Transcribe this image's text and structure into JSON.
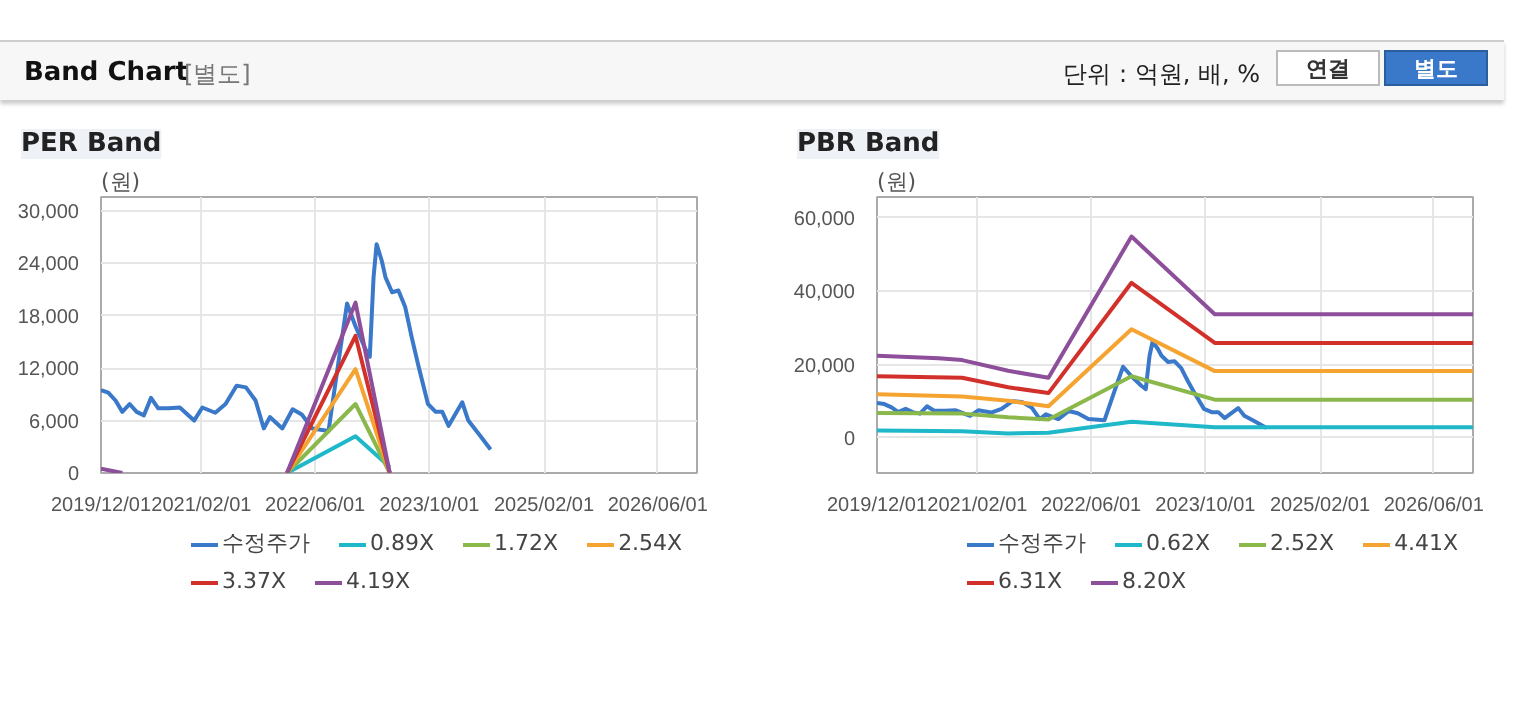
{
  "chart_data": [
    {
      "type": "line",
      "title": "PER Band",
      "ylabel": "(원)",
      "annotations": [
        "Band Chart",
        "[별도]",
        "단위 : 억원, 배, %",
        "연결",
        "별도"
      ],
      "xlim": [
        "2019-12-01",
        "2026-11-15"
      ],
      "ylim": [
        0,
        31600
      ],
      "xticks": [
        {
          "value": "2019-12-01",
          "label": "2019/12/01"
        },
        {
          "value": "2021-02-01",
          "label": "2021/02/01"
        },
        {
          "value": "2022-06-01",
          "label": "2022/06/01"
        },
        {
          "value": "2023-10-01",
          "label": "2023/10/01"
        },
        {
          "value": "2025-02-01",
          "label": "2025/02/01"
        },
        {
          "value": "2026-06-01",
          "label": "2026/06/01"
        }
      ],
      "yticks": [
        0,
        {
          "value": 6000,
          "label": "6,000"
        },
        {
          "value": 12000,
          "label": "12,000"
        },
        {
          "value": 18000,
          "label": "18,000"
        },
        {
          "value": 24000,
          "label": "24,000"
        },
        {
          "value": 30000,
          "label": "30,000"
        }
      ],
      "grid": true,
      "legend": "bottom",
      "marker": "none",
      "line_style": "solid",
      "series": [
        {
          "name": "수정주가",
          "color": "#3a78c9",
          "x": [
            "2019-12-01",
            "2020-01-01",
            "2020-02-01",
            "2020-03-01",
            "2020-04-01",
            "2020-05-01",
            "2020-06-01",
            "2020-07-01",
            "2020-08-01",
            "2020-09-15",
            "2020-11-01",
            "2021-01-01",
            "2021-02-05",
            "2021-04-01",
            "2021-05-15",
            "2021-07-01",
            "2021-08-10",
            "2021-09-20",
            "2021-10-25",
            "2021-11-20",
            "2022-01-12",
            "2022-02-25",
            "2022-04-05",
            "2022-05-20",
            "2022-07-28",
            "2022-09-10",
            "2022-10-15",
            "2022-11-20",
            "2023-01-01",
            "2023-01-20",
            "2023-02-05",
            "2023-02-18",
            "2023-03-12",
            "2023-03-28",
            "2023-04-25",
            "2023-05-22",
            "2023-06-20",
            "2023-07-18",
            "2023-08-15",
            "2023-09-25",
            "2023-10-28",
            "2023-11-25",
            "2023-12-22",
            "2024-02-18",
            "2024-03-15",
            "2024-04-28",
            "2024-06-18"
          ],
          "values": [
            9500,
            9200,
            8300,
            7000,
            7900,
            7000,
            6600,
            8600,
            7400,
            7400,
            7500,
            6000,
            7500,
            6900,
            7900,
            10000,
            9800,
            8300,
            5100,
            6400,
            5100,
            7300,
            6700,
            5100,
            4800,
            13000,
            19400,
            16800,
            14200,
            13300,
            22400,
            26200,
            24300,
            22400,
            20700,
            20900,
            19000,
            15500,
            12300,
            7900,
            7000,
            7000,
            5400,
            8100,
            6000,
            4500,
            2700
          ]
        },
        {
          "name": "0.89X",
          "color": "#1fb8c9",
          "x": [
            "2022-02-01",
            "2022-11-20",
            "2023-04-15"
          ],
          "values": [
            0,
            4200,
            700
          ]
        },
        {
          "name": "1.72X",
          "color": "#8ab84a",
          "x": [
            "2022-02-01",
            "2022-11-20",
            "2023-04-15"
          ],
          "values": [
            0,
            7900,
            0
          ]
        },
        {
          "name": "2.54X",
          "color": "#f5a431",
          "x": [
            "2022-02-01",
            "2022-11-20",
            "2023-04-15"
          ],
          "values": [
            0,
            11900,
            0
          ]
        },
        {
          "name": "3.37X",
          "color": "#d2302a",
          "x": [
            "2022-02-01",
            "2022-11-20",
            "2023-04-15"
          ],
          "values": [
            0,
            15700,
            0
          ]
        },
        {
          "name": "4.19X",
          "color": "#8e4f9a",
          "x": [
            "2019-12-01",
            "2020-03-01",
            "2021-01-01",
            "2022-02-01",
            "2022-11-20",
            "2023-04-15"
          ],
          "values": [
            500,
            0,
            null,
            0,
            19500,
            0
          ]
        }
      ]
    },
    {
      "type": "line",
      "title": "PBR Band",
      "ylabel": "(원)",
      "xlim": [
        "2019-12-01",
        "2026-11-15"
      ],
      "ylim": [
        -9600,
        65700
      ],
      "xticks": [
        {
          "value": "2019-12-01",
          "label": "2019/12/01"
        },
        {
          "value": "2021-02-01",
          "label": "2021/02/01"
        },
        {
          "value": "2022-06-01",
          "label": "2022/06/01"
        },
        {
          "value": "2023-10-01",
          "label": "2023/10/01"
        },
        {
          "value": "2025-02-01",
          "label": "2025/02/01"
        },
        {
          "value": "2026-06-01",
          "label": "2026/06/01"
        }
      ],
      "yticks": [
        0,
        {
          "value": 20000,
          "label": "20,000"
        },
        {
          "value": 40000,
          "label": "40,000"
        },
        {
          "value": 60000,
          "label": "60,000"
        }
      ],
      "grid": true,
      "legend": "bottom",
      "marker": "none",
      "line_style": "solid",
      "series": [
        {
          "name": "수정주가",
          "color": "#3a78c9",
          "x": [
            "2019-12-01",
            "2020-01-01",
            "2020-02-01",
            "2020-03-01",
            "2020-04-01",
            "2020-05-01",
            "2020-06-01",
            "2020-07-01",
            "2020-08-01",
            "2020-09-15",
            "2020-11-01",
            "2021-01-01",
            "2021-02-05",
            "2021-04-01",
            "2021-05-15",
            "2021-07-01",
            "2021-08-10",
            "2021-09-20",
            "2021-10-25",
            "2021-11-20",
            "2022-01-12",
            "2022-02-25",
            "2022-04-05",
            "2022-05-20",
            "2022-07-28",
            "2022-09-10",
            "2022-10-15",
            "2022-11-20",
            "2023-01-01",
            "2023-01-20",
            "2023-02-05",
            "2023-02-18",
            "2023-03-12",
            "2023-03-28",
            "2023-04-25",
            "2023-05-22",
            "2023-06-20",
            "2023-07-18",
            "2023-08-15",
            "2023-09-25",
            "2023-10-28",
            "2023-11-25",
            "2023-12-22",
            "2024-02-18",
            "2024-03-15",
            "2024-04-28",
            "2024-06-18"
          ],
          "values": [
            9500,
            9200,
            8300,
            7000,
            7900,
            7000,
            6600,
            8600,
            7400,
            7400,
            7500,
            6000,
            7500,
            6900,
            7900,
            10000,
            9800,
            8300,
            5100,
            6400,
            5100,
            7300,
            6700,
            5100,
            4800,
            13000,
            19400,
            16800,
            14200,
            13300,
            22400,
            26200,
            24300,
            22400,
            20700,
            20900,
            19000,
            15500,
            12300,
            7900,
            7000,
            7000,
            5400,
            8100,
            6000,
            4500,
            2700
          ]
        },
        {
          "name": "0.62X",
          "color": "#1fb8c9",
          "x": [
            "2019-12-01",
            "2020-11-28",
            "2021-06-12",
            "2021-12-01",
            "2022-11-20",
            "2023-11-10",
            "2026-11-15"
          ],
          "values": [
            2000,
            1800,
            1200,
            1400,
            4400,
            2900,
            2900
          ]
        },
        {
          "name": "2.52X",
          "color": "#8ab84a",
          "x": [
            "2019-12-01",
            "2020-11-28",
            "2021-06-12",
            "2021-12-01",
            "2022-11-20",
            "2023-11-10",
            "2026-11-15"
          ],
          "values": [
            6800,
            6600,
            5600,
            5000,
            16800,
            10400,
            10400
          ]
        },
        {
          "name": "4.41X",
          "color": "#f5a431",
          "x": [
            "2019-12-01",
            "2020-11-28",
            "2021-06-12",
            "2021-12-01",
            "2022-11-20",
            "2023-11-10",
            "2026-11-15"
          ],
          "values": [
            11900,
            11300,
            10100,
            8600,
            29600,
            18200,
            18200
          ]
        },
        {
          "name": "6.31X",
          "color": "#d2302a",
          "x": [
            "2019-12-01",
            "2020-11-28",
            "2021-06-12",
            "2021-12-01",
            "2022-11-20",
            "2023-11-10",
            "2026-11-15"
          ],
          "values": [
            16800,
            16400,
            13800,
            12200,
            42300,
            25900,
            25900
          ]
        },
        {
          "name": "8.20X",
          "color": "#8e4f9a",
          "x": [
            "2019-12-01",
            "2020-08-20",
            "2020-11-28",
            "2021-06-12",
            "2021-12-01",
            "2022-11-20",
            "2023-11-10",
            "2026-11-15"
          ],
          "values": [
            22400,
            21700,
            21200,
            18300,
            16400,
            54900,
            33700,
            33700
          ]
        }
      ]
    }
  ]
}
